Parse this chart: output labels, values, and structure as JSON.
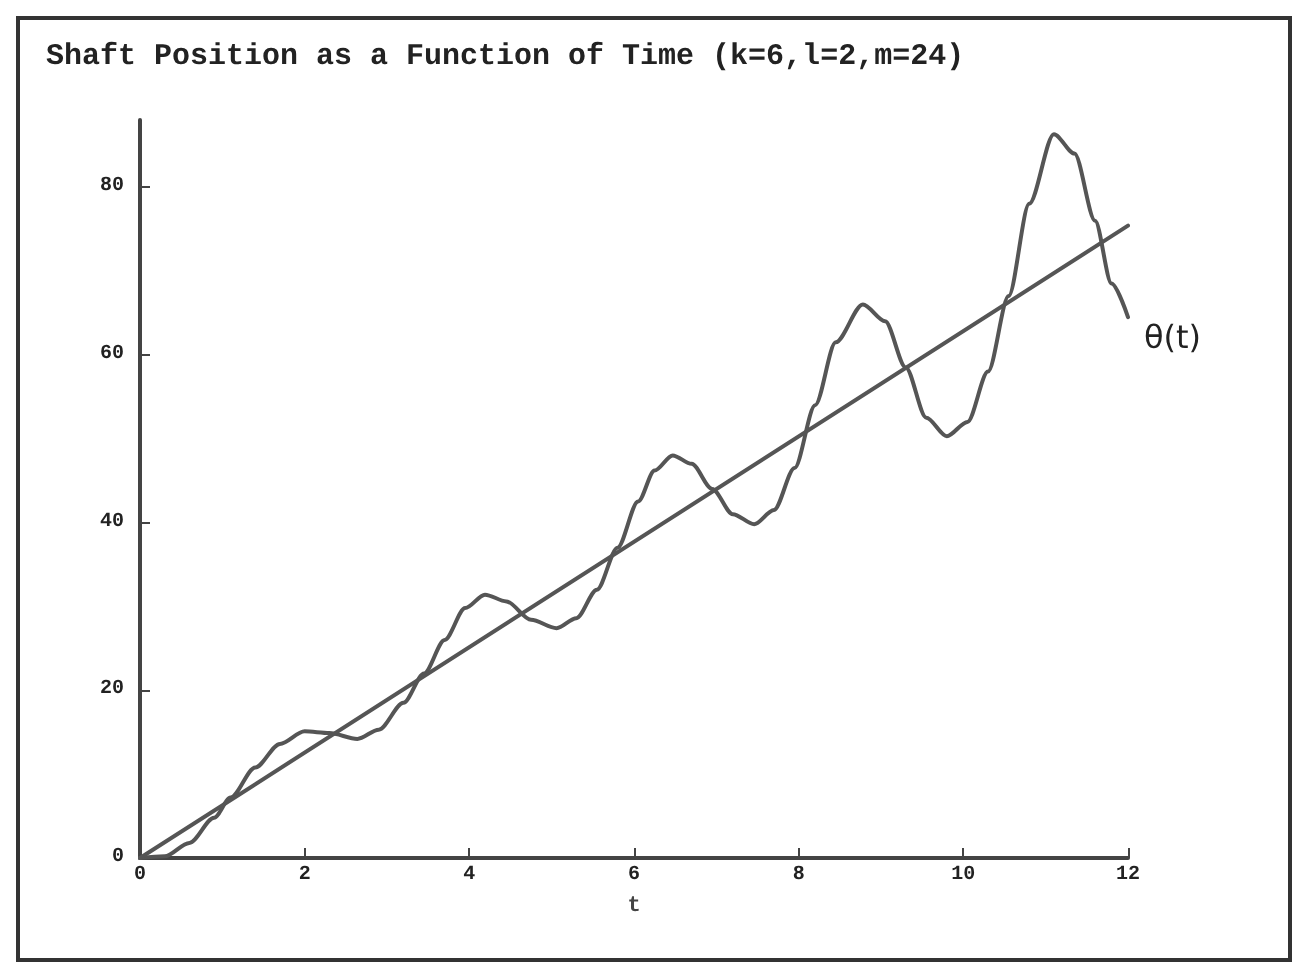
{
  "chart_data": {
    "type": "line",
    "title": "Shaft Position as a Function of Time (k=6,l=2,m=24)",
    "xlabel": "t",
    "xlim": [
      0,
      12
    ],
    "xticks": [
      0,
      2,
      4,
      6,
      8,
      10,
      12
    ],
    "ylim": [
      0,
      88
    ],
    "yticks": [
      0,
      20,
      40,
      60,
      80
    ],
    "grid": false,
    "marker": "none",
    "line_style": "solid",
    "series": [
      {
        "color": "#555555",
        "x": [
          0,
          0.3,
          0.6,
          0.9,
          1.1,
          1.4,
          1.7,
          2.0,
          2.3,
          2.64,
          2.9,
          3.2,
          3.45,
          3.7,
          3.95,
          4.19,
          4.45,
          4.75,
          5.06,
          5.3,
          5.55,
          5.8,
          6.05,
          6.25,
          6.47,
          6.7,
          6.95,
          7.2,
          7.46,
          7.7,
          7.95,
          8.2,
          8.45,
          8.78,
          9.05,
          9.3,
          9.55,
          9.8,
          10.05,
          10.3,
          10.55,
          10.8,
          11.1,
          11.35,
          11.6,
          11.8,
          12
        ],
        "values": [
          0,
          0.2,
          1.8,
          4.8,
          7.2,
          10.8,
          13.6,
          15.1,
          14.9,
          14.2,
          15.3,
          18.5,
          22,
          26,
          29.8,
          31.4,
          30.6,
          28.4,
          27.4,
          28.6,
          32,
          37,
          42.5,
          46.2,
          48,
          47,
          44,
          41,
          39.8,
          41.5,
          46.5,
          54,
          61.5,
          66,
          64,
          58.5,
          52.5,
          50.3,
          52,
          58,
          67,
          78,
          86.3,
          84,
          76,
          68.5,
          64.5
        ]
      },
      {
        "color": "#555555",
        "x": [
          0,
          12
        ],
        "values": [
          0,
          75.4
        ]
      }
    ],
    "annotations": [
      {
        "text": "θ(t)",
        "x": 12,
        "y": 64.5
      }
    ]
  }
}
